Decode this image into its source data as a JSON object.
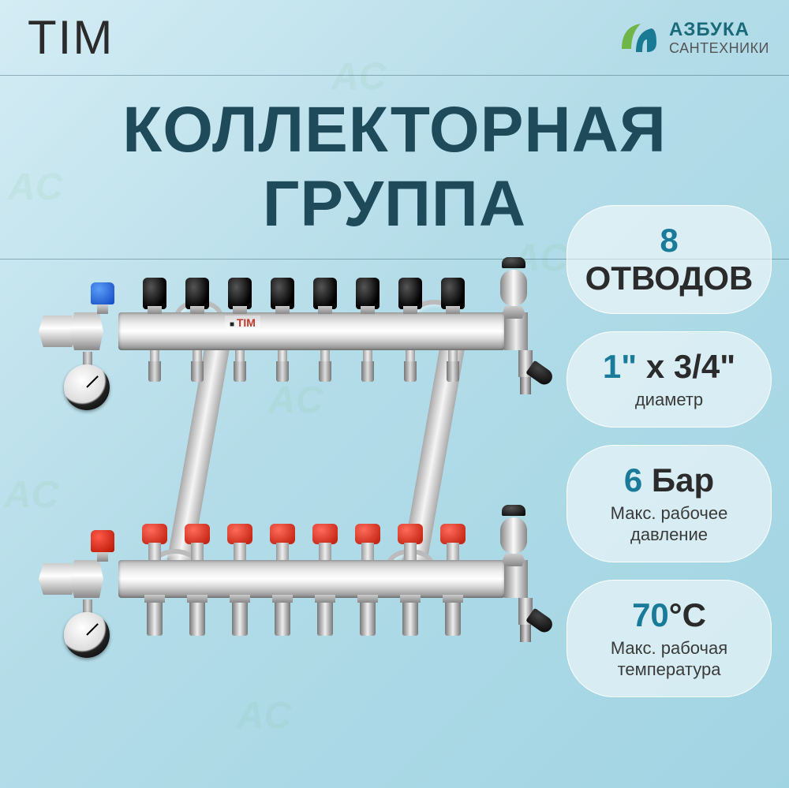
{
  "header": {
    "brand": "TIM",
    "logo_line1": "АЗБУКА",
    "logo_line2": "САНТЕХНИКИ",
    "logo_colors": {
      "leaf": "#6fb548",
      "U": "#1a7a94"
    }
  },
  "title": "КОЛЛЕКТОРНАЯ ГРУППА",
  "specs": [
    {
      "value": "8",
      "unit": "ОТВОДОВ",
      "caption": ""
    },
    {
      "value": "1\"",
      "unit": "x 3/4\"",
      "caption": "диаметр"
    },
    {
      "value": "6",
      "unit": "Бар",
      "caption": "Макс. рабочее\nдавление"
    },
    {
      "value": "70",
      "unit": "°C",
      "caption": "Макс. рабочая\nтемпература"
    }
  ],
  "product": {
    "label_on_bar": "TIM",
    "outlets": 8,
    "valve_color_top": "#1146c4",
    "valve_color_bottom": "#b51200",
    "flowmeter_color": "#c62817",
    "knob_color": "#000000",
    "bar_material": "stainless"
  },
  "watermark_text": "AC",
  "colors": {
    "bg_from": "#d4ecf4",
    "bg_to": "#a1d4e3",
    "title": "#1e4a5a",
    "accent": "#1a7a9a",
    "pill_bg": "rgba(255,255,255,0.55)"
  }
}
